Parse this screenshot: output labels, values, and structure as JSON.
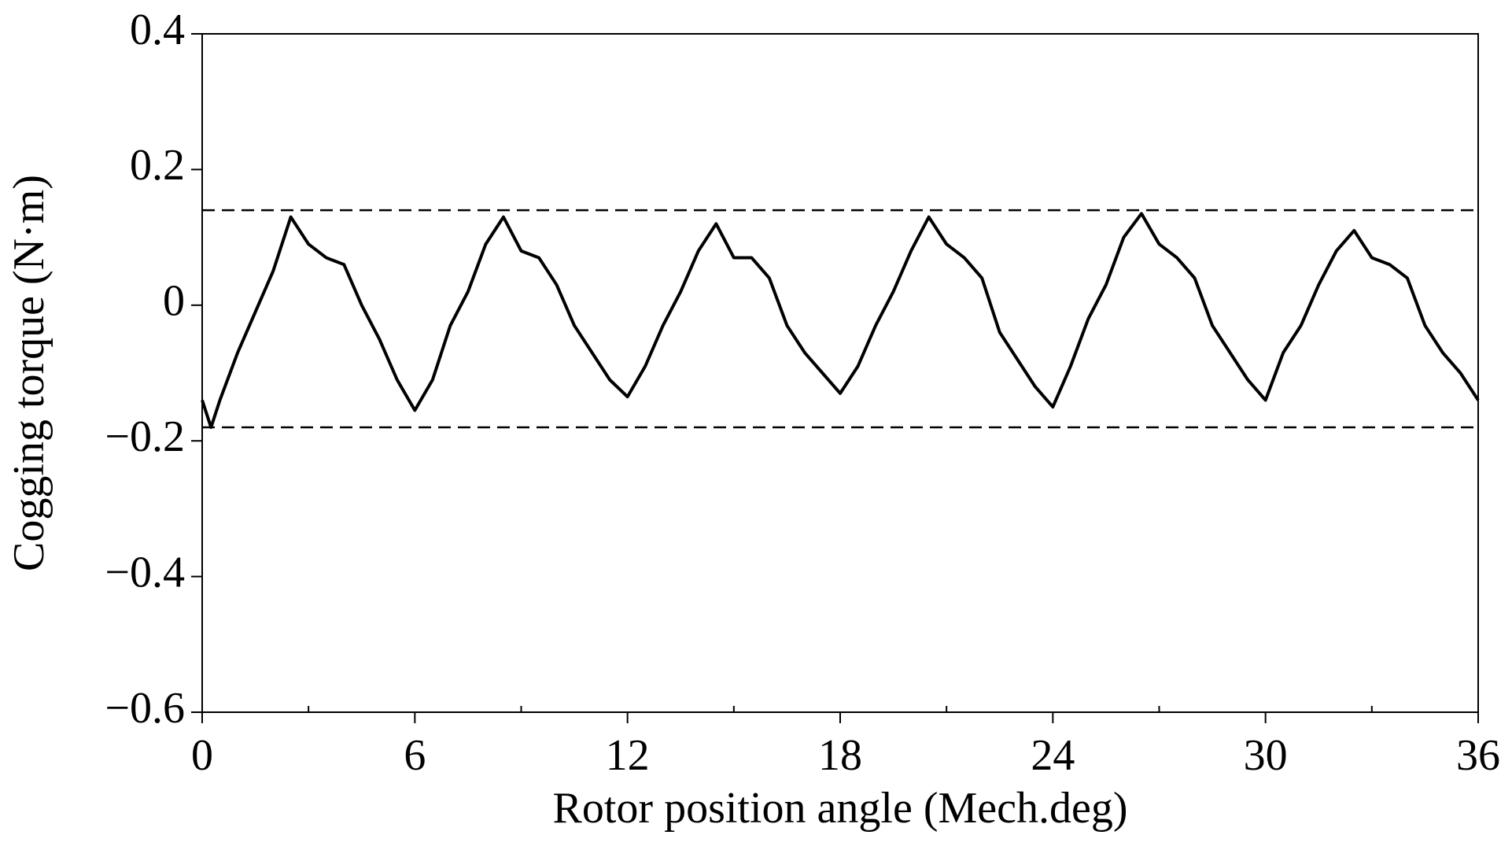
{
  "chart_data": {
    "type": "line",
    "xlabel": "Rotor position angle (Mech.deg)",
    "ylabel": "Cogging torque (N·m)",
    "xlim": [
      0,
      36
    ],
    "ylim": [
      -0.6,
      0.4
    ],
    "xticks": [
      0,
      6,
      12,
      18,
      24,
      30,
      36
    ],
    "xminorticks": [
      3,
      9,
      15,
      21,
      27,
      33
    ],
    "yticks": [
      {
        "value": -0.6,
        "label": "−0.6"
      },
      {
        "value": -0.4,
        "label": "−0.4"
      },
      {
        "value": -0.2,
        "label": "−0.2"
      },
      0,
      0.2,
      0.4
    ],
    "hlines": [
      0.14,
      -0.18
    ],
    "grid": false,
    "x": [
      0,
      0.25,
      0.5,
      1,
      1.5,
      2,
      2.5,
      3,
      3.5,
      4,
      4.5,
      5,
      5.5,
      6,
      6.5,
      7,
      7.5,
      8,
      8.5,
      9,
      9.5,
      10,
      10.5,
      11,
      11.5,
      12,
      12.5,
      13,
      13.5,
      14,
      14.5,
      15,
      15.5,
      16,
      16.5,
      17,
      17.5,
      18,
      18.5,
      19,
      19.5,
      20,
      20.5,
      21,
      21.5,
      22,
      22.5,
      23,
      23.5,
      24,
      24.5,
      25,
      25.5,
      26,
      26.5,
      27,
      27.5,
      28,
      28.5,
      29,
      29.5,
      30,
      30.5,
      31,
      31.5,
      32,
      32.5,
      33,
      33.5,
      34,
      34.5,
      35,
      35.5,
      36
    ],
    "series": [
      {
        "color": "#000000",
        "values": [
          -0.14,
          -0.18,
          -0.14,
          -0.07,
          -0.01,
          0.05,
          0.13,
          0.09,
          0.07,
          0.06,
          0.0,
          -0.05,
          -0.11,
          -0.155,
          -0.11,
          -0.03,
          0.02,
          0.09,
          0.13,
          0.08,
          0.07,
          0.03,
          -0.03,
          -0.07,
          -0.11,
          -0.135,
          -0.09,
          -0.03,
          0.02,
          0.08,
          0.12,
          0.07,
          0.07,
          0.04,
          -0.03,
          -0.07,
          -0.1,
          -0.13,
          -0.09,
          -0.03,
          0.02,
          0.08,
          0.13,
          0.09,
          0.07,
          0.04,
          -0.04,
          -0.08,
          -0.12,
          -0.15,
          -0.09,
          -0.02,
          0.03,
          0.1,
          0.135,
          0.09,
          0.07,
          0.04,
          -0.03,
          -0.07,
          -0.11,
          -0.14,
          -0.07,
          -0.03,
          0.03,
          0.08,
          0.11,
          0.07,
          0.06,
          0.04,
          -0.03,
          -0.07,
          -0.1,
          -0.14
        ]
      }
    ]
  }
}
